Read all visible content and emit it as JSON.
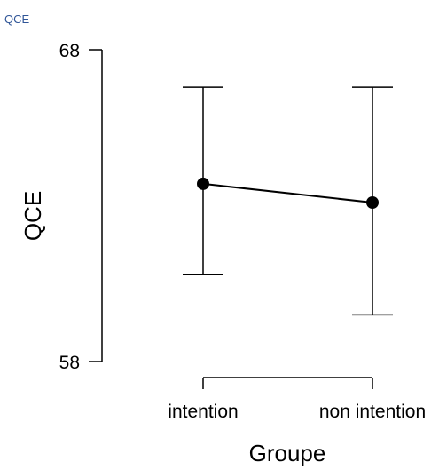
{
  "caption": "QCE",
  "chart_data": {
    "type": "line",
    "title": "",
    "xlabel": "Groupe",
    "ylabel": "QCE",
    "categories": [
      "intention",
      "non intention"
    ],
    "series": [
      {
        "values": [
          63.7,
          63.1
        ],
        "error_low": [
          60.8,
          59.5
        ],
        "error_high": [
          66.8,
          66.8
        ]
      }
    ],
    "ylim": [
      58,
      68
    ],
    "yticks": [
      "58",
      "68"
    ],
    "grid": false,
    "legend": "none",
    "line_color": "#000000"
  }
}
